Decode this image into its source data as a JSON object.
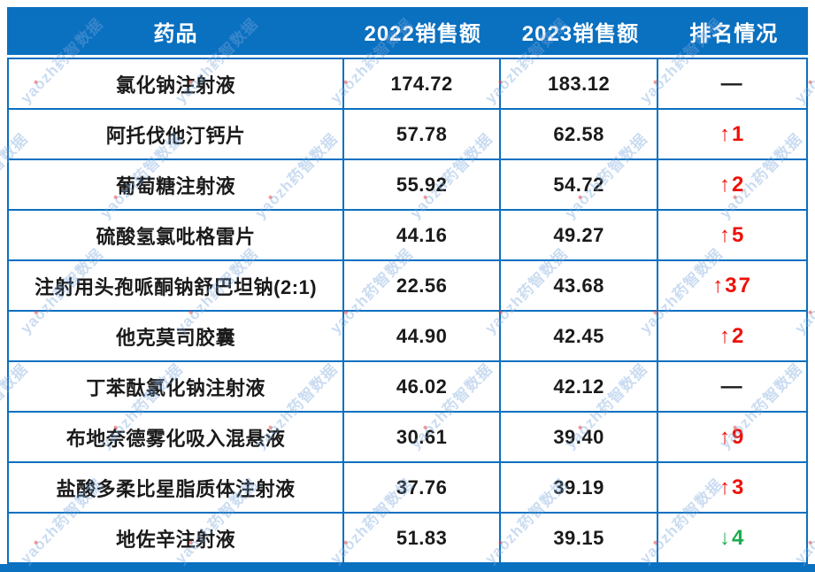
{
  "page": {
    "background": "#ffffff"
  },
  "colors": {
    "header_blue": "#0A70C0",
    "border_blue": "#0A70C0",
    "bottom_bar_blue": "#0A70C0",
    "text_black": "#1A1A1A",
    "rank_up_red": "#EE1109",
    "rank_down_green": "#1CAC50",
    "watermark_blue": "#7AA8DD"
  },
  "watermark": {
    "text": "yaozh药智数据"
  },
  "chart_data": {
    "type": "table",
    "title": "",
    "columns": [
      "药品",
      "2022销售额",
      "2023销售额",
      "排名情况"
    ],
    "rows": [
      {
        "drug": "氯化钠注射液",
        "sales_2022": "174.72",
        "sales_2023": "183.12",
        "rank": "—",
        "rank_color": "#1A1A1A"
      },
      {
        "drug": "阿托伐他汀钙片",
        "sales_2022": "57.78",
        "sales_2023": "62.58",
        "rank": "↑1",
        "rank_color": "#EE1109"
      },
      {
        "drug": "葡萄糖注射液",
        "sales_2022": "55.92",
        "sales_2023": "54.72",
        "rank": "↑2",
        "rank_color": "#EE1109"
      },
      {
        "drug": "硫酸氢氯吡格雷片",
        "sales_2022": "44.16",
        "sales_2023": "49.27",
        "rank": "↑5",
        "rank_color": "#EE1109"
      },
      {
        "drug": "注射用头孢哌酮钠舒巴坦钠(2:1)",
        "sales_2022": "22.56",
        "sales_2023": "43.68",
        "rank": "↑37",
        "rank_color": "#EE1109"
      },
      {
        "drug": "他克莫司胶囊",
        "sales_2022": "44.90",
        "sales_2023": "42.45",
        "rank": "↑2",
        "rank_color": "#EE1109"
      },
      {
        "drug": "丁苯酞氯化钠注射液",
        "sales_2022": "46.02",
        "sales_2023": "42.12",
        "rank": "—",
        "rank_color": "#1A1A1A"
      },
      {
        "drug": "布地奈德雾化吸入混悬液",
        "sales_2022": "30.61",
        "sales_2023": "39.40",
        "rank": "↑9",
        "rank_color": "#EE1109"
      },
      {
        "drug": "盐酸多柔比星脂质体注射液",
        "sales_2022": "37.76",
        "sales_2023": "39.19",
        "rank": "↑3",
        "rank_color": "#EE1109"
      },
      {
        "drug": "地佐辛注射液",
        "sales_2022": "51.83",
        "sales_2023": "39.15",
        "rank": "↓4",
        "rank_color": "#1CAC50"
      }
    ]
  }
}
